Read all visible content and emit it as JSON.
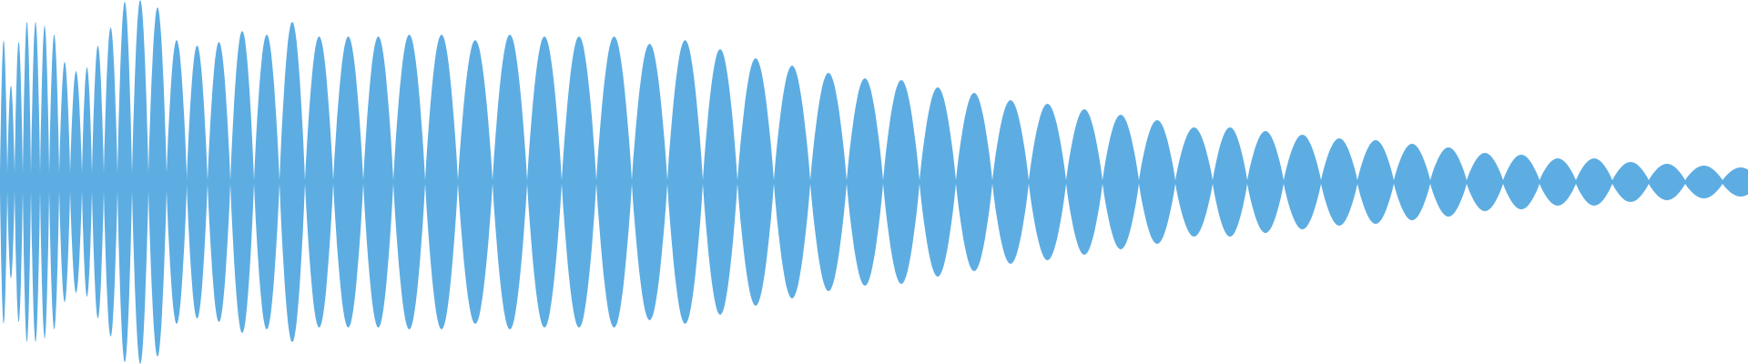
{
  "chart_data": {
    "type": "area",
    "title": "",
    "xlabel": "",
    "ylabel": "",
    "ylim": [
      -1,
      1
    ],
    "grid": false,
    "legend": "none",
    "color": "#5DADE2",
    "background": "#FFFFFF",
    "peaks": [
      0.78,
      0.53,
      0.77,
      0.88,
      0.88,
      0.86,
      0.81,
      0.66,
      0.61,
      0.63,
      0.75,
      0.85,
      0.99,
      1.0,
      0.96,
      0.78,
      0.75,
      0.77,
      0.83,
      0.81,
      0.88,
      0.8,
      0.8,
      0.8,
      0.81,
      0.81,
      0.78,
      0.81,
      0.8,
      0.8,
      0.8,
      0.76,
      0.78,
      0.73,
      0.68,
      0.64,
      0.6,
      0.57,
      0.56,
      0.52,
      0.49,
      0.45,
      0.43,
      0.4,
      0.37,
      0.34,
      0.3,
      0.3,
      0.28,
      0.26,
      0.24,
      0.23,
      0.21,
      0.19,
      0.16,
      0.15,
      0.13,
      0.13,
      0.11,
      0.1,
      0.09,
      0.08
    ]
  }
}
